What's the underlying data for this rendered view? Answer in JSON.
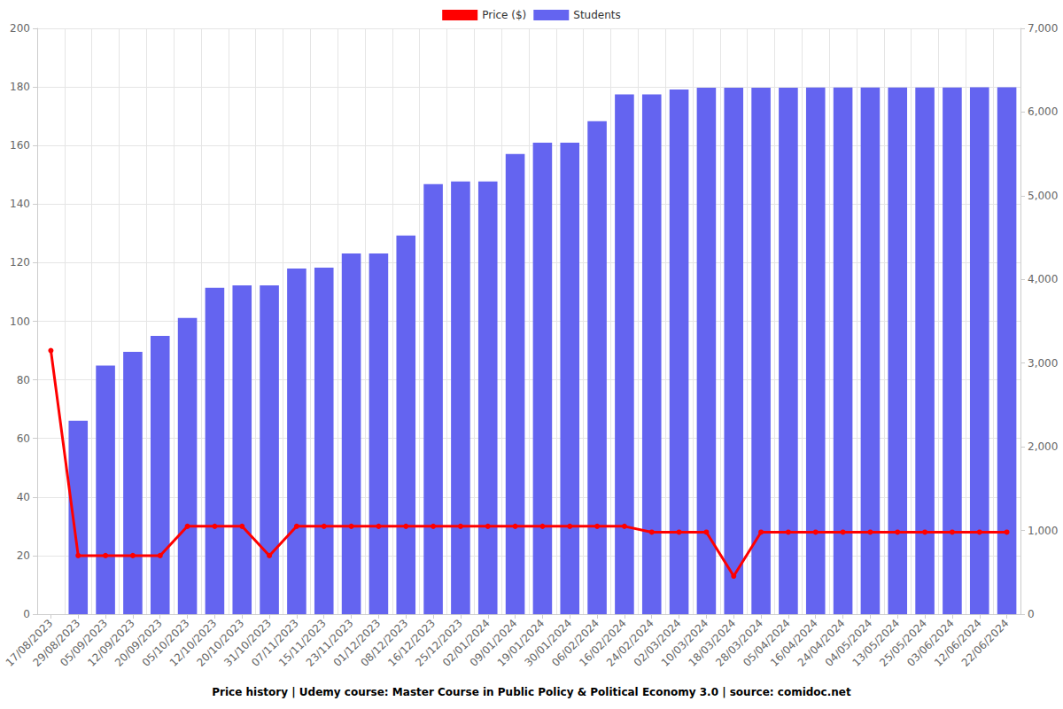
{
  "chart_data": {
    "type": "bar",
    "title": "Price history | Udemy course: Master Course in Public Policy & Political Economy 3.0 | source: comidoc.net",
    "categories": [
      "17/08/2023",
      "29/08/2023",
      "05/09/2023",
      "12/09/2023",
      "20/09/2023",
      "05/10/2023",
      "12/10/2023",
      "20/10/2023",
      "31/10/2023",
      "07/11/2023",
      "15/11/2023",
      "23/11/2023",
      "01/12/2023",
      "08/12/2023",
      "16/12/2023",
      "25/12/2023",
      "02/01/2024",
      "09/01/2024",
      "19/01/2024",
      "30/01/2024",
      "06/02/2024",
      "16/02/2024",
      "24/02/2024",
      "02/03/2024",
      "10/03/2024",
      "18/03/2024",
      "28/03/2024",
      "05/04/2024",
      "16/04/2024",
      "24/04/2024",
      "04/05/2024",
      "13/05/2024",
      "25/05/2024",
      "03/06/2024",
      "12/06/2024",
      "22/06/2024"
    ],
    "series": [
      {
        "name": "Price ($)",
        "type": "line",
        "axis": "y",
        "color": "#ff0000",
        "marker": "circle",
        "values": [
          90,
          20,
          20,
          20,
          20,
          30,
          30,
          30,
          20,
          30,
          30,
          30,
          30,
          30,
          30,
          30,
          30,
          30,
          30,
          30,
          30,
          30,
          28,
          28,
          28,
          13,
          28,
          28,
          28,
          28,
          28,
          28,
          28,
          28,
          28,
          28
        ]
      },
      {
        "name": "Students",
        "type": "bar",
        "axis": "y2",
        "color": "#6464f0",
        "values": [
          0,
          2310,
          2970,
          3135,
          3325,
          3540,
          3900,
          3930,
          3930,
          4130,
          4140,
          4310,
          4310,
          4525,
          5140,
          5170,
          5170,
          5500,
          5635,
          5635,
          5890,
          6210,
          6210,
          6270,
          6290,
          6290,
          6290,
          6290,
          6292,
          6292,
          6292,
          6292,
          6294,
          6294,
          6295,
          6296
        ]
      }
    ],
    "ylim": [
      0,
      200
    ],
    "yticks": [
      0,
      20,
      40,
      60,
      80,
      100,
      120,
      140,
      160,
      180,
      200
    ],
    "y2lim": [
      0,
      7000
    ],
    "y2ticks": [
      0,
      1000,
      2000,
      3000,
      4000,
      5000,
      6000,
      7000
    ],
    "grid": true,
    "legend": "top"
  }
}
